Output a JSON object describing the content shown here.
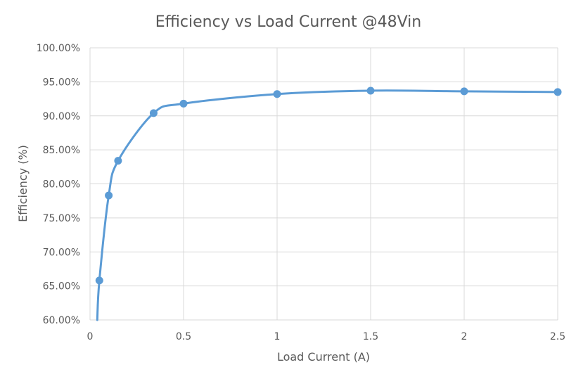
{
  "chart_data": {
    "type": "scatter",
    "title": "Efficiency vs Load Current @48Vin",
    "xlabel": "Load Current (A)",
    "ylabel": "Efficiency (%)",
    "xlim": [
      0,
      2.5
    ],
    "ylim": [
      0.6,
      1.0
    ],
    "x_ticks": [
      0,
      0.5,
      1,
      1.5,
      2,
      2.5
    ],
    "x_tick_labels": [
      "0",
      "0.5",
      "1",
      "1.5",
      "2",
      "2.5"
    ],
    "y_ticks": [
      0.6,
      0.65,
      0.7,
      0.75,
      0.8,
      0.85,
      0.9,
      0.95,
      1.0
    ],
    "y_tick_labels": [
      "60.00%",
      "65.00%",
      "70.00%",
      "75.00%",
      "80.00%",
      "85.00%",
      "90.00%",
      "95.00%",
      "100.00%"
    ],
    "grid": true,
    "legend": "none",
    "smooth_line": true,
    "color": "#5B9BD5",
    "series": [
      {
        "x": [
          0.05,
          0.1,
          0.15,
          0.34,
          0.5,
          1.0,
          1.5,
          2.0,
          2.5
        ],
        "y": [
          0.658,
          0.783,
          0.834,
          0.904,
          0.918,
          0.932,
          0.937,
          0.936,
          0.935
        ]
      }
    ]
  }
}
